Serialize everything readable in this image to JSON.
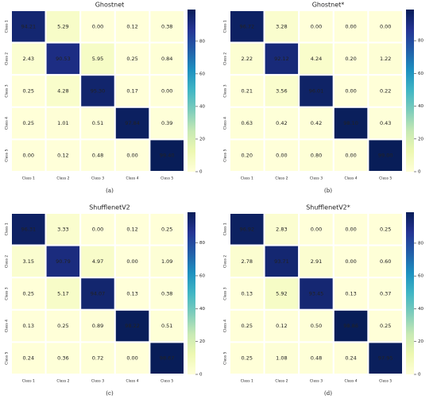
{
  "chart_data": [
    {
      "type": "heatmap",
      "title": "Ghostnet",
      "label": "(a)",
      "cmap": "YlGnBu",
      "x": [
        "Class 1",
        "Class 2",
        "Class 3",
        "Class 4",
        "Class 5"
      ],
      "y": [
        "Class 1",
        "Class 2",
        "Class 3",
        "Class 4",
        "Class 5"
      ],
      "values": [
        [
          94.21,
          5.29,
          0.0,
          0.12,
          0.38
        ],
        [
          2.43,
          90.53,
          5.95,
          0.25,
          0.84
        ],
        [
          0.25,
          4.28,
          95.3,
          0.17,
          0.0
        ],
        [
          0.25,
          1.01,
          0.51,
          97.84,
          0.39
        ],
        [
          0.0,
          0.12,
          0.48,
          0.0,
          99.4
        ]
      ],
      "value_labels": [
        [
          "94.21",
          "5.29",
          "0.00",
          "0.12",
          "0.38"
        ],
        [
          "2.43",
          "90.53",
          "5.95",
          "0.25",
          "0.84"
        ],
        [
          "0.25",
          "4.28",
          "95.30",
          "0.17",
          "0.00"
        ],
        [
          "0.25",
          "1.01",
          "0.51",
          "97.84",
          "0.39"
        ],
        [
          "0.00",
          "0.12",
          "0.48",
          "0.00",
          "99.40"
        ]
      ],
      "clim": [
        0,
        99.4
      ],
      "cticks": [
        0,
        20,
        40,
        60,
        80
      ]
    },
    {
      "type": "heatmap",
      "title": "Ghostnet*",
      "label": "(b)",
      "cmap": "YlGnBu",
      "x": [
        "Class 1",
        "Class 2",
        "Class 3",
        "Class 4",
        "Class 5"
      ],
      "y": [
        "Class 1",
        "Class 2",
        "Class 3",
        "Class 4",
        "Class 5"
      ],
      "values": [
        [
          96.72,
          3.28,
          0.0,
          0.0,
          0.0
        ],
        [
          2.22,
          92.12,
          4.24,
          0.2,
          1.22
        ],
        [
          0.21,
          3.56,
          96.01,
          0.0,
          0.22
        ],
        [
          0.63,
          0.42,
          0.42,
          98.1,
          0.43
        ],
        [
          0.2,
          0.0,
          0.8,
          0.0,
          99.0
        ]
      ],
      "value_labels": [
        [
          "96.72",
          "3.28",
          "0.00",
          "0.00",
          "0.00"
        ],
        [
          "2.22",
          "92.12",
          "4.24",
          "0.20",
          "1.22"
        ],
        [
          "0.21",
          "3.56",
          "96.01",
          "0.00",
          "0.22"
        ],
        [
          "0.63",
          "0.42",
          "0.42",
          "98.10",
          "0.43"
        ],
        [
          "0.20",
          "0.00",
          "0.80",
          "0.00",
          "99.00"
        ]
      ],
      "clim": [
        0,
        99.0
      ],
      "cticks": [
        0,
        20,
        40,
        60,
        80
      ]
    },
    {
      "type": "heatmap",
      "title": "ShufflenetV2",
      "label": "(c)",
      "cmap": "YlGnBu",
      "x": [
        "Class 1",
        "Class 2",
        "Class 3",
        "Class 4",
        "Class 5"
      ],
      "y": [
        "Class 1",
        "Class 2",
        "Class 3",
        "Class 4",
        "Class 5"
      ],
      "values": [
        [
          96.31,
          3.33,
          0.0,
          0.12,
          0.25
        ],
        [
          3.15,
          90.79,
          4.97,
          0.0,
          1.09
        ],
        [
          0.25,
          5.17,
          94.07,
          0.13,
          0.38
        ],
        [
          0.13,
          0.25,
          0.89,
          98.22,
          0.51
        ],
        [
          0.24,
          0.36,
          0.72,
          0.0,
          98.67
        ]
      ],
      "value_labels": [
        [
          "96.31",
          "3.33",
          "0.00",
          "0.12",
          "0.25"
        ],
        [
          "3.15",
          "90.79",
          "4.97",
          "0.00",
          "1.09"
        ],
        [
          "0.25",
          "5.17",
          "94.07",
          "0.13",
          "0.38"
        ],
        [
          "0.13",
          "0.25",
          "0.89",
          "98.22",
          "0.51"
        ],
        [
          "0.24",
          "0.36",
          "0.72",
          "0.00",
          "98.67"
        ]
      ],
      "clim": [
        0,
        98.67
      ],
      "cticks": [
        0,
        20,
        40,
        60,
        80
      ]
    },
    {
      "type": "heatmap",
      "title": "ShufflenetV2*",
      "label": "(d)",
      "cmap": "YlGnBu",
      "x": [
        "Class 1",
        "Class 2",
        "Class 3",
        "Class 4",
        "Class 5"
      ],
      "y": [
        "Class 1",
        "Class 2",
        "Class 3",
        "Class 4",
        "Class 5"
      ],
      "values": [
        [
          96.92,
          2.83,
          0.0,
          0.0,
          0.25
        ],
        [
          2.78,
          93.71,
          2.91,
          0.0,
          0.6
        ],
        [
          0.13,
          5.92,
          93.45,
          0.13,
          0.37
        ],
        [
          0.25,
          0.12,
          0.5,
          98.86,
          0.25
        ],
        [
          0.25,
          1.08,
          0.48,
          0.24,
          97.95
        ]
      ],
      "value_labels": [
        [
          "96.92",
          "2.83",
          "0.00",
          "0.00",
          "0.25"
        ],
        [
          "2.78",
          "93.71",
          "2.91",
          "0.00",
          "0.60"
        ],
        [
          "0.13",
          "5.92",
          "93.45",
          "0.13",
          "0.37"
        ],
        [
          "0.25",
          "0.12",
          "0.50",
          "98.86",
          "0.25"
        ],
        [
          "0.25",
          "1.08",
          "0.48",
          "0.24",
          "97.95"
        ]
      ],
      "clim": [
        0,
        98.86
      ],
      "cticks": [
        0,
        20,
        40,
        60,
        80
      ]
    }
  ]
}
